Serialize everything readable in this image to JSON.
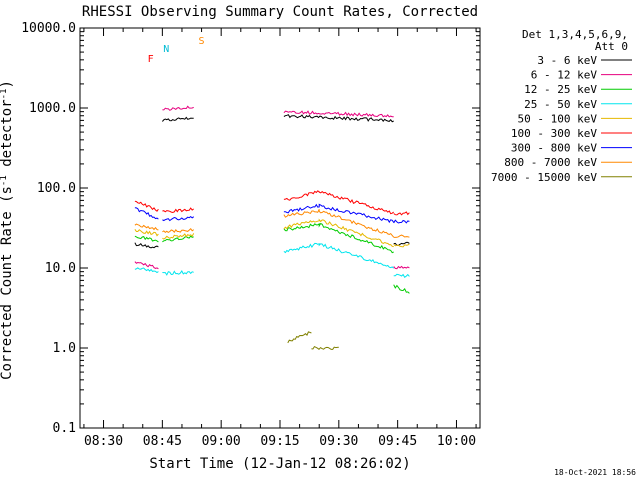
{
  "chart_data": {
    "type": "line",
    "title": "RHESSI Observing Summary Count Rates, Corrected",
    "xlabel": "Start Time (12-Jan-12 08:26:02)",
    "ylabel": "Corrected Count Rate (s",
    "ylabel_sup": "-1",
    "ylabel_tail": " detector",
    "ylabel_sup2": "-1",
    "ylabel_end": ")",
    "y_scale": "log",
    "ylim": [
      0.1,
      10000
    ],
    "xlim": [
      "08:24",
      "10:06"
    ],
    "x_ticks": [
      "08:30",
      "08:45",
      "09:00",
      "09:15",
      "09:30",
      "09:45",
      "10:00"
    ],
    "y_ticks": [
      "0.1",
      "1.0",
      "10.0",
      "100.0",
      "1000.0",
      "10000.0"
    ],
    "legend_title": [
      "Det 1,3,4,5,6,9,",
      "Att 0"
    ],
    "legend_placement": "right",
    "footer_date": "18-Oct-2021 18:56",
    "series": [
      {
        "name": "3 - 6 keV",
        "color": "#000000",
        "segments": [
          {
            "x": [
              "08:38",
              "08:44"
            ],
            "y": [
              20,
              18
            ]
          },
          {
            "x": [
              "08:45",
              "08:53"
            ],
            "y": [
              700,
              760
            ]
          },
          {
            "x": [
              "09:16",
              "09:44"
            ],
            "y": [
              800,
              700
            ]
          },
          {
            "x": [
              "09:44",
              "09:48"
            ],
            "y": [
              20,
              20
            ]
          }
        ]
      },
      {
        "name": "6 - 12 keV",
        "color": "#e6007e",
        "segments": [
          {
            "x": [
              "08:38",
              "08:44"
            ],
            "y": [
              12,
              10
            ]
          },
          {
            "x": [
              "08:45",
              "08:53"
            ],
            "y": [
              950,
              1050
            ]
          },
          {
            "x": [
              "09:16",
              "09:44"
            ],
            "y": [
              900,
              800
            ]
          },
          {
            "x": [
              "09:44",
              "09:48"
            ],
            "y": [
              10,
              10
            ]
          }
        ]
      },
      {
        "name": "12 - 25 keV",
        "color": "#00cc00",
        "segments": [
          {
            "x": [
              "08:38",
              "08:44"
            ],
            "y": [
              25,
              22
            ]
          },
          {
            "x": [
              "08:45",
              "08:53"
            ],
            "y": [
              22,
              25
            ]
          },
          {
            "x": [
              "09:16",
              "09:25",
              "09:44"
            ],
            "y": [
              30,
              35,
              16
            ]
          },
          {
            "x": [
              "09:44",
              "09:48"
            ],
            "y": [
              6,
              5
            ]
          }
        ]
      },
      {
        "name": "25 - 50 keV",
        "color": "#00e5ee",
        "segments": [
          {
            "x": [
              "08:38",
              "08:44"
            ],
            "y": [
              10,
              9
            ]
          },
          {
            "x": [
              "08:45",
              "08:53"
            ],
            "y": [
              8.5,
              9
            ]
          },
          {
            "x": [
              "09:16",
              "09:25",
              "09:44"
            ],
            "y": [
              16,
              20,
              10
            ]
          },
          {
            "x": [
              "09:44",
              "09:48"
            ],
            "y": [
              8,
              8
            ]
          }
        ]
      },
      {
        "name": "50 - 100 keV",
        "color": "#e6b800",
        "segments": [
          {
            "x": [
              "08:38",
              "08:44"
            ],
            "y": [
              30,
              26
            ]
          },
          {
            "x": [
              "08:45",
              "08:53"
            ],
            "y": [
              24,
              26
            ]
          },
          {
            "x": [
              "09:16",
              "09:25",
              "09:44"
            ],
            "y": [
              32,
              40,
              19
            ]
          },
          {
            "x": [
              "09:44",
              "09:48"
            ],
            "y": [
              19,
              19
            ]
          }
        ]
      },
      {
        "name": "100 - 300 keV",
        "color": "#ff0000",
        "segments": [
          {
            "x": [
              "08:38",
              "08:44"
            ],
            "y": [
              70,
              52
            ]
          },
          {
            "x": [
              "08:45",
              "08:53"
            ],
            "y": [
              50,
              55
            ]
          },
          {
            "x": [
              "09:16",
              "09:25",
              "09:44"
            ],
            "y": [
              70,
              90,
              48
            ]
          },
          {
            "x": [
              "09:44",
              "09:48"
            ],
            "y": [
              48,
              48
            ]
          }
        ]
      },
      {
        "name": "300 - 800 keV",
        "color": "#0000ff",
        "segments": [
          {
            "x": [
              "08:38",
              "08:44"
            ],
            "y": [
              55,
              42
            ]
          },
          {
            "x": [
              "08:45",
              "08:53"
            ],
            "y": [
              40,
              43
            ]
          },
          {
            "x": [
              "09:16",
              "09:25",
              "09:44"
            ],
            "y": [
              50,
              60,
              38
            ]
          },
          {
            "x": [
              "09:44",
              "09:48"
            ],
            "y": [
              38,
              38
            ]
          }
        ]
      },
      {
        "name": "800 - 7000 keV",
        "color": "#ff8800",
        "segments": [
          {
            "x": [
              "08:38",
              "08:44"
            ],
            "y": [
              35,
              30
            ]
          },
          {
            "x": [
              "08:45",
              "08:53"
            ],
            "y": [
              28,
              30
            ]
          },
          {
            "x": [
              "09:16",
              "09:25",
              "09:44"
            ],
            "y": [
              45,
              52,
              25
            ]
          },
          {
            "x": [
              "09:44",
              "09:48"
            ],
            "y": [
              25,
              25
            ]
          }
        ]
      },
      {
        "name": "7000 - 15000 keV",
        "color": "#808000",
        "segments": [
          {
            "x": [
              "09:17",
              "09:23"
            ],
            "y": [
              1.2,
              1.6
            ]
          },
          {
            "x": [
              "09:23",
              "09:30"
            ],
            "y": [
              1.0,
              1.0
            ]
          }
        ]
      }
    ],
    "annotations": [
      {
        "label": "F",
        "color": "#ff0000",
        "x": "08:42"
      },
      {
        "label": "N",
        "color": "#00bcd4",
        "x": "08:46"
      },
      {
        "label": "S",
        "color": "#ff8800",
        "x": "08:55"
      }
    ]
  }
}
